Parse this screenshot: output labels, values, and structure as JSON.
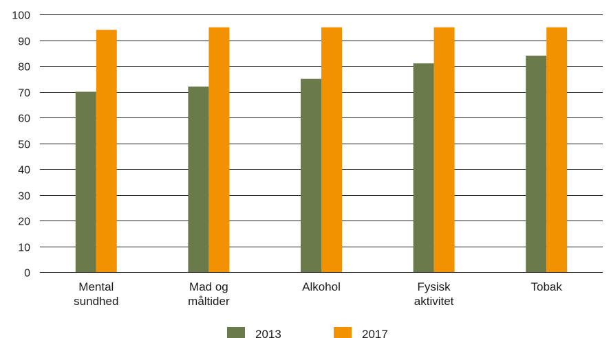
{
  "chart_data": {
    "type": "bar",
    "categories": [
      [
        "Mental",
        "sundhed"
      ],
      [
        "Mad og",
        "måltider"
      ],
      [
        "Alkohol"
      ],
      [
        "Fysisk",
        "aktivitet"
      ],
      [
        "Tobak"
      ]
    ],
    "series": [
      {
        "name": "2013",
        "values": [
          70,
          72,
          75,
          81,
          84
        ],
        "color": "#6b7a4b"
      },
      {
        "name": "2017",
        "values": [
          94,
          95,
          95,
          95,
          95
        ],
        "color": "#f39200"
      }
    ],
    "ylim": [
      0,
      100
    ],
    "yticks": [
      "0",
      "10",
      "20",
      "30",
      "40",
      "50",
      "60",
      "70",
      "80",
      "90",
      "100"
    ],
    "grid": true,
    "legend_position": "bottom-center",
    "title": "",
    "xlabel": "",
    "ylabel": ""
  }
}
